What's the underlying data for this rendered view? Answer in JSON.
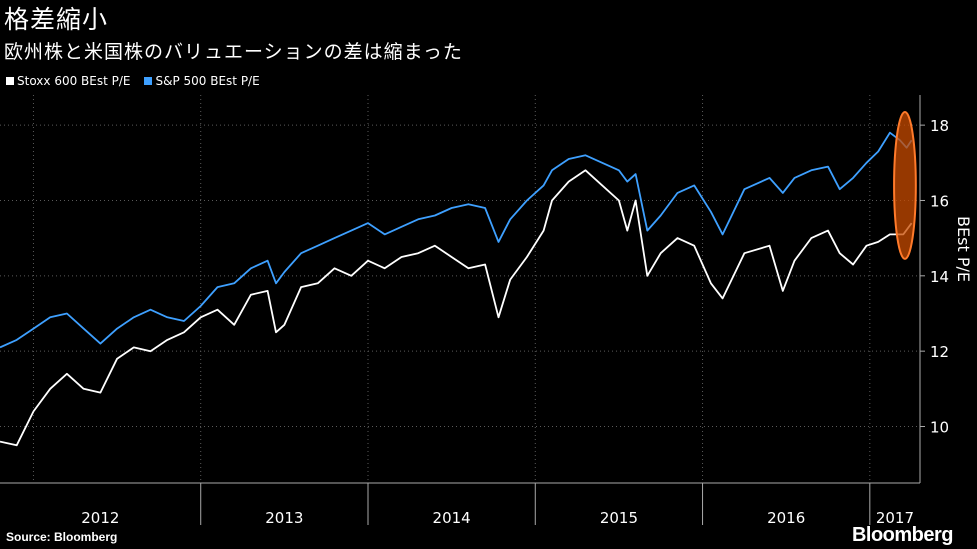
{
  "title": "格差縮小",
  "subtitle": "欧州株と米国株のバリュエーションの差は縮まった",
  "source": "Source: Bloomberg",
  "brand": "Bloomberg",
  "chart_data": {
    "type": "line",
    "ylabel": "BEst P/E",
    "ylim": [
      8.5,
      18.8
    ],
    "yticks": [
      10,
      12,
      14,
      16,
      18
    ],
    "xlim": [
      2011.8,
      2017.3
    ],
    "year_labels": [
      "2012",
      "2013",
      "2014",
      "2015",
      "2016",
      "2017"
    ],
    "year_starts": [
      2012,
      2013,
      2014,
      2015,
      2016,
      2017
    ],
    "grid": true,
    "legend_position": "top-left",
    "series": [
      {
        "name": "Stoxx 600 BEst P/E",
        "color": "#ffffff",
        "points": [
          [
            2011.8,
            9.6
          ],
          [
            2011.9,
            9.5
          ],
          [
            2012.0,
            10.4
          ],
          [
            2012.1,
            11.0
          ],
          [
            2012.2,
            11.4
          ],
          [
            2012.3,
            11.0
          ],
          [
            2012.4,
            10.9
          ],
          [
            2012.5,
            11.8
          ],
          [
            2012.6,
            12.1
          ],
          [
            2012.7,
            12.0
          ],
          [
            2012.8,
            12.3
          ],
          [
            2012.9,
            12.5
          ],
          [
            2013.0,
            12.9
          ],
          [
            2013.1,
            13.1
          ],
          [
            2013.2,
            12.7
          ],
          [
            2013.3,
            13.5
          ],
          [
            2013.4,
            13.6
          ],
          [
            2013.45,
            12.5
          ],
          [
            2013.5,
            12.7
          ],
          [
            2013.6,
            13.7
          ],
          [
            2013.7,
            13.8
          ],
          [
            2013.8,
            14.2
          ],
          [
            2013.9,
            14.0
          ],
          [
            2014.0,
            14.4
          ],
          [
            2014.1,
            14.2
          ],
          [
            2014.2,
            14.5
          ],
          [
            2014.3,
            14.6
          ],
          [
            2014.4,
            14.8
          ],
          [
            2014.5,
            14.5
          ],
          [
            2014.6,
            14.2
          ],
          [
            2014.7,
            14.3
          ],
          [
            2014.78,
            12.9
          ],
          [
            2014.85,
            13.9
          ],
          [
            2014.95,
            14.5
          ],
          [
            2015.05,
            15.2
          ],
          [
            2015.1,
            16.0
          ],
          [
            2015.2,
            16.5
          ],
          [
            2015.3,
            16.8
          ],
          [
            2015.4,
            16.4
          ],
          [
            2015.5,
            16.0
          ],
          [
            2015.55,
            15.2
          ],
          [
            2015.6,
            16.0
          ],
          [
            2015.67,
            14.0
          ],
          [
            2015.75,
            14.6
          ],
          [
            2015.85,
            15.0
          ],
          [
            2015.95,
            14.8
          ],
          [
            2016.05,
            13.8
          ],
          [
            2016.12,
            13.4
          ],
          [
            2016.25,
            14.6
          ],
          [
            2016.4,
            14.8
          ],
          [
            2016.48,
            13.6
          ],
          [
            2016.55,
            14.4
          ],
          [
            2016.65,
            15.0
          ],
          [
            2016.75,
            15.2
          ],
          [
            2016.82,
            14.6
          ],
          [
            2016.9,
            14.3
          ],
          [
            2016.98,
            14.8
          ],
          [
            2017.05,
            14.9
          ],
          [
            2017.12,
            15.1
          ],
          [
            2017.2,
            15.1
          ],
          [
            2017.25,
            15.4
          ]
        ]
      },
      {
        "name": "S&P 500 BEst P/E",
        "color": "#3ea0ff",
        "points": [
          [
            2011.8,
            12.1
          ],
          [
            2011.9,
            12.3
          ],
          [
            2012.0,
            12.6
          ],
          [
            2012.1,
            12.9
          ],
          [
            2012.2,
            13.0
          ],
          [
            2012.3,
            12.6
          ],
          [
            2012.4,
            12.2
          ],
          [
            2012.5,
            12.6
          ],
          [
            2012.6,
            12.9
          ],
          [
            2012.7,
            13.1
          ],
          [
            2012.8,
            12.9
          ],
          [
            2012.9,
            12.8
          ],
          [
            2013.0,
            13.2
          ],
          [
            2013.1,
            13.7
          ],
          [
            2013.2,
            13.8
          ],
          [
            2013.3,
            14.2
          ],
          [
            2013.4,
            14.4
          ],
          [
            2013.45,
            13.8
          ],
          [
            2013.5,
            14.1
          ],
          [
            2013.6,
            14.6
          ],
          [
            2013.7,
            14.8
          ],
          [
            2013.8,
            15.0
          ],
          [
            2013.9,
            15.2
          ],
          [
            2014.0,
            15.4
          ],
          [
            2014.1,
            15.1
          ],
          [
            2014.2,
            15.3
          ],
          [
            2014.3,
            15.5
          ],
          [
            2014.4,
            15.6
          ],
          [
            2014.5,
            15.8
          ],
          [
            2014.6,
            15.9
          ],
          [
            2014.7,
            15.8
          ],
          [
            2014.78,
            14.9
          ],
          [
            2014.85,
            15.5
          ],
          [
            2014.95,
            16.0
          ],
          [
            2015.05,
            16.4
          ],
          [
            2015.1,
            16.8
          ],
          [
            2015.2,
            17.1
          ],
          [
            2015.3,
            17.2
          ],
          [
            2015.4,
            17.0
          ],
          [
            2015.5,
            16.8
          ],
          [
            2015.55,
            16.5
          ],
          [
            2015.6,
            16.7
          ],
          [
            2015.67,
            15.2
          ],
          [
            2015.75,
            15.6
          ],
          [
            2015.85,
            16.2
          ],
          [
            2015.95,
            16.4
          ],
          [
            2016.05,
            15.7
          ],
          [
            2016.12,
            15.1
          ],
          [
            2016.25,
            16.3
          ],
          [
            2016.4,
            16.6
          ],
          [
            2016.48,
            16.2
          ],
          [
            2016.55,
            16.6
          ],
          [
            2016.65,
            16.8
          ],
          [
            2016.75,
            16.9
          ],
          [
            2016.82,
            16.3
          ],
          [
            2016.9,
            16.6
          ],
          [
            2016.98,
            17.0
          ],
          [
            2017.05,
            17.3
          ],
          [
            2017.12,
            17.8
          ],
          [
            2017.18,
            17.6
          ],
          [
            2017.22,
            17.4
          ],
          [
            2017.25,
            17.6
          ]
        ]
      }
    ],
    "highlight": {
      "x_center": 2017.21,
      "y_center": 16.4,
      "x_radius": 0.065,
      "y_radius": 1.95,
      "fill": "#c84b00",
      "stroke": "#ff7a2a"
    }
  }
}
